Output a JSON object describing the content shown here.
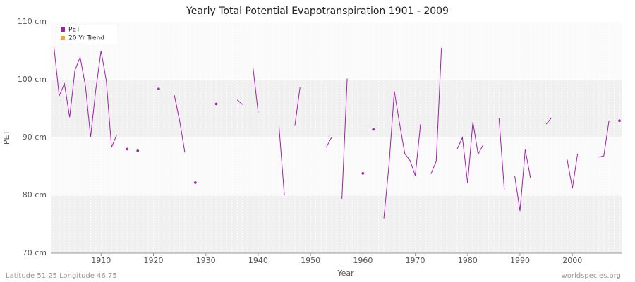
{
  "chart_data": {
    "type": "line",
    "title": "Yearly Total Potential Evapotranspiration 1901 - 2009",
    "x_label": "Year",
    "y_label": "PET",
    "footer_left": "Latitude 51.25 Longitude 46.75",
    "footer_right": "worldspecies.org",
    "x": [
      1901,
      1902,
      1903,
      1904,
      1905,
      1906,
      1907,
      1908,
      1909,
      1910,
      1911,
      1912,
      1913,
      1914,
      1915,
      1916,
      1917,
      1918,
      1919,
      1920,
      1921,
      1922,
      1923,
      1924,
      1925,
      1926,
      1927,
      1928,
      1929,
      1930,
      1931,
      1932,
      1933,
      1934,
      1935,
      1936,
      1937,
      1938,
      1939,
      1940,
      1941,
      1942,
      1943,
      1944,
      1945,
      1946,
      1947,
      1948,
      1949,
      1950,
      1951,
      1952,
      1953,
      1954,
      1955,
      1956,
      1957,
      1958,
      1959,
      1960,
      1961,
      1962,
      1963,
      1964,
      1965,
      1966,
      1967,
      1968,
      1969,
      1970,
      1971,
      1972,
      1973,
      1974,
      1975,
      1976,
      1977,
      1978,
      1979,
      1980,
      1981,
      1982,
      1983,
      1984,
      1985,
      1986,
      1987,
      1988,
      1989,
      1990,
      1991,
      1992,
      1993,
      1994,
      1995,
      1996,
      1997,
      1998,
      1999,
      2000,
      2001,
      2002,
      2003,
      2004,
      2005,
      2006,
      2007,
      2008,
      2009
    ],
    "series": [
      {
        "name": "PET",
        "color": "#a020a8",
        "values": [
          105.7,
          97.2,
          99.3,
          93.5,
          101.6,
          103.9,
          99.0,
          90.1,
          98.3,
          105.0,
          99.8,
          88.3,
          90.5,
          null,
          88.0,
          null,
          87.7,
          null,
          null,
          null,
          98.4,
          null,
          null,
          97.3,
          92.9,
          87.4,
          null,
          82.2,
          null,
          null,
          null,
          95.8,
          null,
          null,
          null,
          96.5,
          95.7,
          null,
          102.2,
          94.3,
          null,
          null,
          null,
          91.7,
          80.0,
          null,
          92.0,
          98.7,
          null,
          null,
          null,
          null,
          88.3,
          90.0,
          null,
          79.4,
          100.2,
          null,
          null,
          83.8,
          null,
          91.4,
          null,
          76.0,
          85.4,
          98.0,
          92.4,
          87.2,
          86.0,
          83.4,
          92.3,
          null,
          83.7,
          85.9,
          105.5,
          null,
          null,
          88.0,
          90.0,
          82.1,
          92.7,
          87.1,
          88.8,
          null,
          null,
          93.3,
          81.0,
          null,
          83.3,
          77.3,
          87.9,
          83.0,
          null,
          null,
          92.3,
          93.4,
          null,
          null,
          86.2,
          81.2,
          87.2,
          null,
          null,
          null,
          86.6,
          86.8,
          92.9,
          null,
          92.9
        ]
      },
      {
        "name": "20 Yr Trend",
        "color": "#f5a623",
        "values": [
          null,
          null,
          null,
          null,
          null,
          null,
          null,
          null,
          null,
          null,
          null,
          null,
          null,
          null,
          null,
          null,
          null,
          null,
          null,
          null,
          null,
          null,
          null,
          null,
          null,
          null,
          null,
          null,
          null,
          null,
          null,
          null,
          null,
          null,
          null,
          null,
          null,
          null,
          null,
          null,
          null,
          null,
          null,
          null,
          null,
          null,
          null,
          null,
          null,
          null,
          null,
          null,
          null,
          null,
          null,
          null,
          null,
          null,
          null,
          null,
          null,
          null,
          null,
          null,
          null,
          null,
          null,
          null,
          null,
          null,
          null,
          null,
          null,
          null,
          null,
          null,
          null,
          null,
          null,
          null,
          null,
          null,
          null,
          null,
          null,
          null,
          null,
          null,
          null,
          null,
          null,
          null,
          null,
          null,
          null,
          null,
          null,
          null,
          null,
          null,
          null,
          null,
          null,
          null,
          null,
          null,
          null,
          null,
          null
        ]
      }
    ],
    "xlim": [
      1900.4,
      2009.4
    ],
    "xticks": [
      1910,
      1920,
      1930,
      1940,
      1950,
      1960,
      1970,
      1980,
      1990,
      2000
    ],
    "ylim": [
      70,
      110
    ],
    "yticks": [
      {
        "value": 70,
        "label": "70 cm"
      },
      {
        "value": 80,
        "label": "80 cm"
      },
      {
        "value": 90,
        "label": "90 cm"
      },
      {
        "value": 100,
        "label": "100 cm"
      },
      {
        "value": 110,
        "label": "110 cm"
      }
    ],
    "grid": true,
    "legend": "top-left"
  }
}
